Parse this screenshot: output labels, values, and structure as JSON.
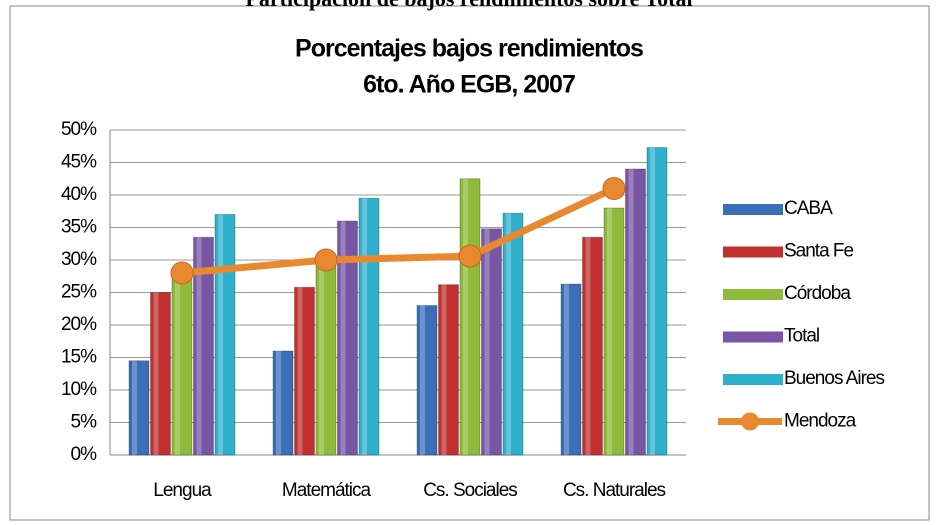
{
  "chart_data": {
    "type": "bar",
    "header": "Participación de bajos rendimientos sobre Total",
    "title": "Porcentajes bajos rendimientos",
    "subtitle": "6to. Año EGB, 2007",
    "categories": [
      "Lengua",
      "Matemática",
      "Cs. Sociales",
      "Cs. Naturales"
    ],
    "series": [
      {
        "name": "CABA",
        "color": "#3a6fb8",
        "values": [
          14.5,
          16,
          23,
          26.3
        ]
      },
      {
        "name": "Santa Fe",
        "color": "#c0312f",
        "values": [
          25,
          25.8,
          26.2,
          33.5
        ]
      },
      {
        "name": "Córdoba",
        "color": "#8fba3a",
        "values": [
          28,
          29.5,
          42.5,
          38
        ]
      },
      {
        "name": "Total",
        "color": "#7a55a4",
        "values": [
          33.5,
          36,
          34.8,
          44
        ]
      },
      {
        "name": "Buenos Aires",
        "color": "#2fb0cc",
        "values": [
          37,
          39.5,
          37.2,
          47.3
        ]
      },
      {
        "name": "Mendoza",
        "color": "#e8892f",
        "type": "line",
        "values": [
          28,
          30,
          30.6,
          41
        ]
      }
    ],
    "ylim": [
      0,
      50
    ],
    "yticks": [
      {
        "value": 0,
        "label": "0%"
      },
      {
        "value": 5,
        "label": "5%"
      },
      {
        "value": 10,
        "label": "10%"
      },
      {
        "value": 15,
        "label": "15%"
      },
      {
        "value": 20,
        "label": "20%"
      },
      {
        "value": 25,
        "label": "25%"
      },
      {
        "value": 30,
        "label": "30%"
      },
      {
        "value": 35,
        "label": "35%"
      },
      {
        "value": 40,
        "label": "40%"
      },
      {
        "value": 45,
        "label": "45%"
      },
      {
        "value": 50,
        "label": "50%"
      }
    ],
    "grid": true,
    "legend": "right"
  }
}
